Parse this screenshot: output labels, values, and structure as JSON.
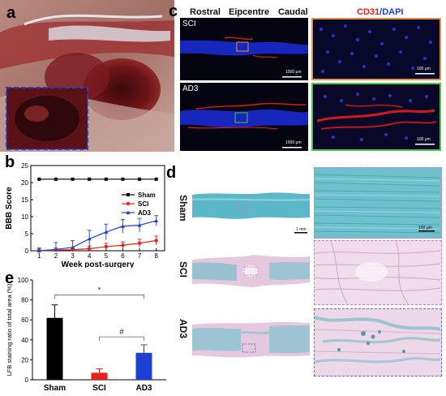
{
  "panels": {
    "a": {
      "label": "a"
    },
    "c": {
      "label": "c",
      "headers": [
        "Rostral",
        "Eipcentre",
        "Caudal"
      ],
      "stain_red": "CD31",
      "stain_sep": "/",
      "stain_blue": "DAPI",
      "rows": [
        "SCI",
        "AD3"
      ],
      "scale_left": "1000 μm",
      "scale_right": "100 μm"
    },
    "b": {
      "label": "b"
    },
    "d": {
      "label": "d",
      "rows": [
        "Sham",
        "SCI",
        "AD3"
      ],
      "scale_left": "1 mm",
      "scale_right": "100 μm"
    },
    "e": {
      "label": "e"
    }
  },
  "colors": {
    "sham": "#000000",
    "sci": "#e8201a",
    "ad3": "#1f3fd0",
    "lfb_blue": "#5bb8c8",
    "tissue_pink": "#f0dcea",
    "c_frame_sci": "#e8904a",
    "c_frame_ad3": "#4cc44c",
    "d_frame_sham": "#d87ad0",
    "d_frame_sci": "#d87ad0",
    "d_frame_ad3": "#6a6ad0"
  },
  "chart_data": [
    {
      "type": "line",
      "panel": "b",
      "xlabel": "Week post-surgery",
      "ylabel": "BBB Score",
      "x": [
        1,
        2,
        3,
        4,
        5,
        6,
        7,
        8
      ],
      "xticks": [
        1,
        2,
        3,
        4,
        5,
        6,
        7,
        8
      ],
      "yticks": [
        0,
        5,
        10,
        15,
        20,
        25
      ],
      "ylim": [
        0,
        25
      ],
      "xlim": [
        0.5,
        8.5
      ],
      "legend_position": "center-right",
      "series": [
        {
          "name": "Sham",
          "values": [
            21,
            21,
            21,
            21,
            21,
            21,
            21,
            21
          ],
          "errors": [
            0,
            0,
            0,
            0,
            0,
            0,
            0,
            0
          ],
          "color": "#000000",
          "marker": "square"
        },
        {
          "name": "SCI",
          "values": [
            0,
            0.2,
            0.3,
            0.6,
            1.2,
            1.6,
            2.2,
            3.0
          ],
          "errors": [
            0.5,
            0.6,
            0.6,
            0.8,
            1.0,
            1.0,
            1.2,
            1.3
          ],
          "color": "#e8201a",
          "marker": "circle"
        },
        {
          "name": "AD3",
          "values": [
            0,
            0.4,
            1.0,
            3.5,
            5.5,
            7.2,
            7.5,
            8.8
          ],
          "errors": [
            0.8,
            2.0,
            2.0,
            2.5,
            2.3,
            2.0,
            2.0,
            1.5
          ],
          "color": "#1f3fd0",
          "marker": "triangle"
        }
      ]
    },
    {
      "type": "bar",
      "panel": "e",
      "ylabel": "LFB staining ratio of total area (%)",
      "categories": [
        "Sham",
        "SCI",
        "AD3"
      ],
      "values": [
        62,
        7,
        27
      ],
      "errors": [
        13,
        4,
        8
      ],
      "colors": [
        "#000000",
        "#e8201a",
        "#1f3fd0"
      ],
      "yticks": [
        0,
        20,
        40,
        60,
        80,
        100
      ],
      "ylim": [
        0,
        100
      ],
      "annotations": [
        {
          "between": [
            "Sham",
            "AD3"
          ],
          "text": "*"
        },
        {
          "between": [
            "SCI",
            "AD3"
          ],
          "text": "#"
        }
      ]
    }
  ]
}
